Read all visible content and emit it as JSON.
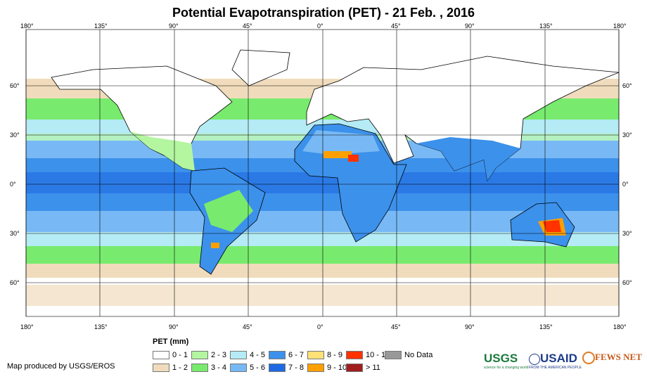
{
  "title": "Potential Evapotranspiration (PET) - 21 Feb. , 2016",
  "lon_labels": [
    "180°",
    "135°",
    "90°",
    "45°",
    "0°",
    "45°",
    "90°",
    "135°",
    "180°"
  ],
  "lat_labels": [
    "60°",
    "30°",
    "0°",
    "30°",
    "60°"
  ],
  "legend": {
    "title": "PET (mm)",
    "items": [
      {
        "label": "0 - 1",
        "color": "#ffffff"
      },
      {
        "label": "1 - 2",
        "color": "#f0dcbc"
      },
      {
        "label": "2 - 3",
        "color": "#b4f5a0"
      },
      {
        "label": "3 - 4",
        "color": "#78eb6e"
      },
      {
        "label": "4 - 5",
        "color": "#b4ebf5"
      },
      {
        "label": "5 - 6",
        "color": "#78b9f5"
      },
      {
        "label": "6 - 7",
        "color": "#3c91eb"
      },
      {
        "label": "7 - 8",
        "color": "#1e69e1"
      },
      {
        "label": "8 - 9",
        "color": "#ffe178"
      },
      {
        "label": "9 - 10",
        "color": "#ffa000"
      },
      {
        "label": "10 - 11",
        "color": "#ff3200"
      },
      {
        "label": "> 11",
        "color": "#a01e1e"
      },
      {
        "label": "No Data",
        "color": "#999999"
      }
    ]
  },
  "credit": "Map produced by USGS/EROS",
  "logos": {
    "usgs": "USGS",
    "usgs_tag": "science for a changing world",
    "usaid": "USAID",
    "usaid_tag": "FROM THE AMERICAN PEOPLE",
    "fews": "FEWS NET"
  }
}
